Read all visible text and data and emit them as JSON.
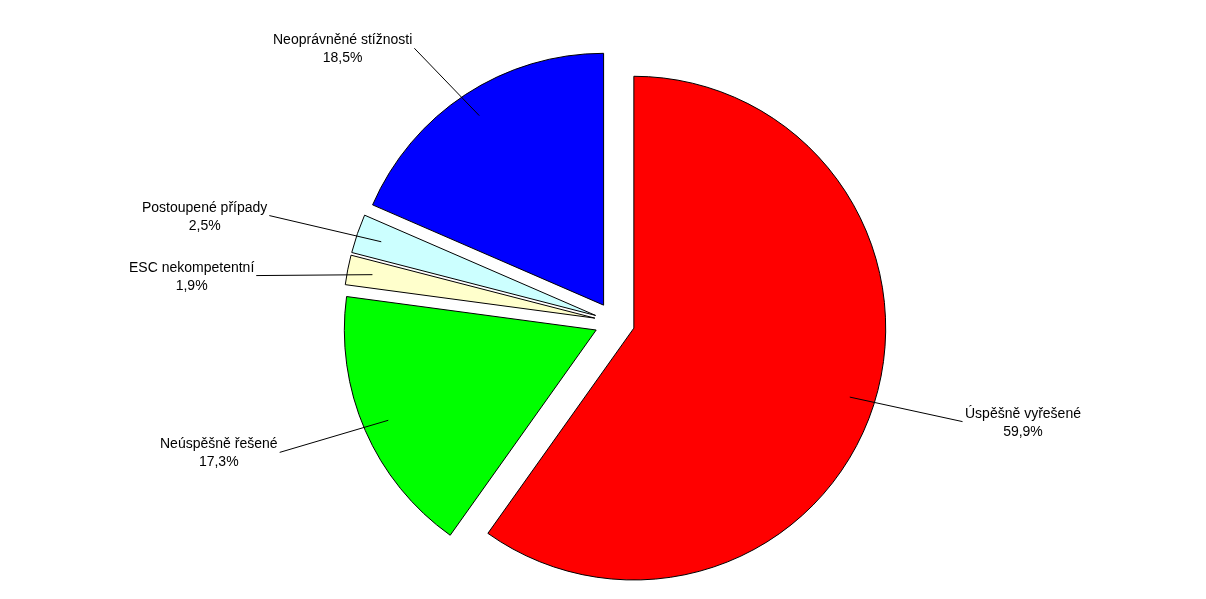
{
  "chart_data": {
    "type": "pie",
    "categories": [
      "Úspěšně vyřešené",
      "Neúspěšně řešené",
      "ESC nekompetentní",
      "Postoupené případy",
      "Neoprávněné stížnosti"
    ],
    "values": [
      59.9,
      17.3,
      1.9,
      2.5,
      18.5
    ],
    "value_labels": [
      "59,9%",
      "17,3%",
      "1,9%",
      "2,5%",
      "18,5%"
    ],
    "colors": [
      "#ff0000",
      "#00ff00",
      "#ffffcc",
      "#ccffff",
      "#0000ff"
    ],
    "legend": false
  }
}
